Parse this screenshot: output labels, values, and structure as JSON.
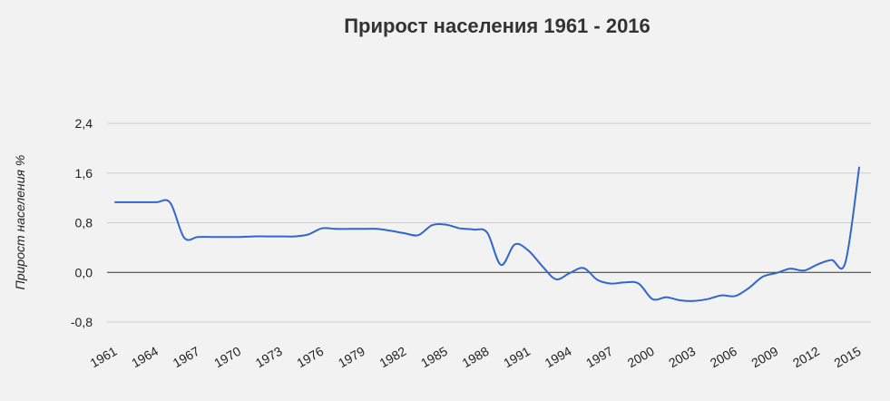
{
  "chart_data": {
    "type": "line",
    "title": "Прирост населения 1961 - 2016",
    "ylabel": "Прирост населения %",
    "xlabel": "",
    "xlim": [
      1961,
      2015
    ],
    "ylim": [
      -0.8,
      2.4
    ],
    "y_ticks": [
      "2,4",
      "1,6",
      "0,8",
      "0,0",
      "-0,8"
    ],
    "y_tick_values": [
      2.4,
      1.6,
      0.8,
      0.0,
      -0.8
    ],
    "x_ticks": [
      "1961",
      "1964",
      "1967",
      "1970",
      "1973",
      "1976",
      "1979",
      "1982",
      "1985",
      "1988",
      "1991",
      "1994",
      "1997",
      "2000",
      "2003",
      "2006",
      "2009",
      "2012",
      "2015"
    ],
    "x_tick_values": [
      1961,
      1964,
      1967,
      1970,
      1973,
      1976,
      1979,
      1982,
      1985,
      1988,
      1991,
      1994,
      1997,
      2000,
      2003,
      2006,
      2009,
      2012,
      2015
    ],
    "legend": "none",
    "grid": "horizontal",
    "series": [
      {
        "color": "#3366cc",
        "x": [
          1961,
          1962,
          1963,
          1964,
          1965,
          1966,
          1967,
          1968,
          1969,
          1970,
          1971,
          1972,
          1973,
          1974,
          1975,
          1976,
          1977,
          1978,
          1979,
          1980,
          1981,
          1982,
          1983,
          1984,
          1985,
          1986,
          1987,
          1988,
          1989,
          1990,
          1991,
          1992,
          1993,
          1994,
          1995,
          1996,
          1997,
          1998,
          1999,
          2000,
          2001,
          2002,
          2003,
          2004,
          2005,
          2006,
          2007,
          2008,
          2009,
          2010,
          2011,
          2012,
          2013,
          2014,
          2015
        ],
        "values": [
          1.13,
          1.13,
          1.13,
          1.13,
          1.12,
          0.56,
          0.57,
          0.57,
          0.57,
          0.57,
          0.58,
          0.58,
          0.58,
          0.58,
          0.61,
          0.71,
          0.7,
          0.7,
          0.7,
          0.7,
          0.67,
          0.63,
          0.6,
          0.76,
          0.77,
          0.71,
          0.69,
          0.64,
          0.12,
          0.45,
          0.35,
          0.1,
          -0.11,
          -0.01,
          0.07,
          -0.12,
          -0.18,
          -0.16,
          -0.18,
          -0.43,
          -0.4,
          -0.45,
          -0.46,
          -0.43,
          -0.37,
          -0.38,
          -0.25,
          -0.07,
          -0.01,
          0.06,
          0.03,
          0.13,
          0.2,
          0.16,
          1.69
        ]
      }
    ]
  }
}
